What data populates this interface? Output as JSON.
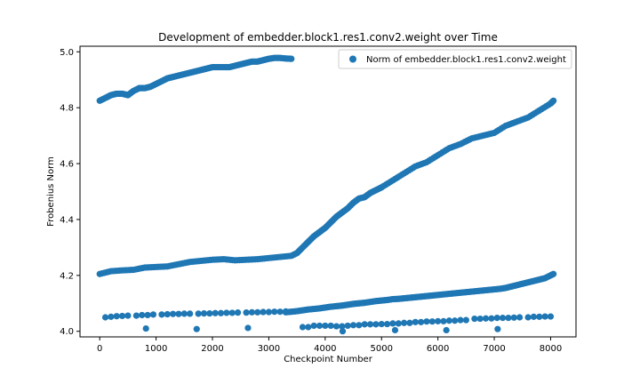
{
  "chart_data": {
    "type": "scatter",
    "title": "Development of embedder.block1.res1.conv2.weight over Time",
    "xlabel": "Checkpoint Number",
    "ylabel": "Frobenius Norm",
    "xlim": [
      -350,
      8450
    ],
    "ylim": [
      3.98,
      5.02
    ],
    "xticks": [
      0,
      1000,
      2000,
      3000,
      4000,
      5000,
      6000,
      7000,
      8000
    ],
    "yticks": [
      4.0,
      4.2,
      4.4,
      4.6,
      4.8,
      5.0
    ],
    "ytick_labels": [
      "4.0",
      "4.2",
      "4.4",
      "4.6",
      "4.8",
      "5.0"
    ],
    "grid": false,
    "legend_position": "top-right",
    "marker_color": "#1f77b4",
    "series": [
      {
        "name": "Norm of embedder.block1.res1.conv2.weight",
        "groups": [
          {
            "x": [
              0,
              100,
              200,
              300,
              400,
              500,
              600,
              700,
              800,
              900,
              1000,
              1100,
              1200,
              1300,
              1400,
              1500,
              1600,
              1700,
              1800,
              1900,
              2000,
              2100,
              2200,
              2300,
              2400,
              2500,
              2600,
              2700,
              2800,
              2900,
              3000,
              3100,
              3200,
              3300,
              3400
            ],
            "y": [
              4.825,
              4.835,
              4.845,
              4.85,
              4.85,
              4.845,
              4.86,
              4.87,
              4.87,
              4.875,
              4.885,
              4.895,
              4.905,
              4.91,
              4.915,
              4.92,
              4.925,
              4.93,
              4.935,
              4.94,
              4.945,
              4.945,
              4.945,
              4.945,
              4.95,
              4.955,
              4.96,
              4.965,
              4.965,
              4.97,
              4.975,
              4.978,
              4.978,
              4.976,
              4.975
            ]
          },
          {
            "x": [
              0,
              200,
              400,
              600,
              800,
              1000,
              1200,
              1400,
              1600,
              1800,
              2000,
              2200,
              2400,
              2600,
              2800,
              3000,
              3200,
              3400,
              3500,
              3600,
              3700,
              3800,
              3900,
              4000,
              4100,
              4200,
              4300,
              4400,
              4500,
              4600,
              4700,
              4800,
              4900,
              5000,
              5200,
              5400,
              5600,
              5800,
              6000,
              6200,
              6400,
              6600,
              6800,
              7000,
              7200,
              7400,
              7600,
              7800,
              8000,
              8050
            ],
            "y": [
              4.205,
              4.215,
              4.218,
              4.22,
              4.228,
              4.23,
              4.232,
              4.24,
              4.248,
              4.252,
              4.256,
              4.258,
              4.254,
              4.256,
              4.258,
              4.262,
              4.266,
              4.27,
              4.28,
              4.3,
              4.32,
              4.34,
              4.355,
              4.37,
              4.39,
              4.41,
              4.425,
              4.44,
              4.46,
              4.475,
              4.48,
              4.495,
              4.505,
              4.515,
              4.54,
              4.565,
              4.59,
              4.605,
              4.63,
              4.655,
              4.67,
              4.69,
              4.7,
              4.71,
              4.735,
              4.75,
              4.765,
              4.79,
              4.815,
              4.825
            ]
          },
          {
            "x": [
              3300,
              3400,
              3500,
              3600,
              3700,
              3800,
              3900,
              4000,
              4100,
              4200,
              4300,
              4400,
              4500,
              4600,
              4700,
              4800,
              4900,
              5000,
              5100,
              5200,
              5300,
              5400,
              5500,
              5600,
              5700,
              5800,
              5900,
              6000,
              6100,
              6200,
              6300,
              6400,
              6500,
              6600,
              6700,
              6800,
              6900,
              7000,
              7100,
              7200,
              7300,
              7400,
              7500,
              7600,
              7700,
              7800,
              7900,
              8000,
              8050
            ],
            "y": [
              4.068,
              4.07,
              4.072,
              4.075,
              4.078,
              4.08,
              4.082,
              4.085,
              4.088,
              4.09,
              4.092,
              4.095,
              4.098,
              4.1,
              4.102,
              4.105,
              4.108,
              4.11,
              4.112,
              4.115,
              4.116,
              4.118,
              4.12,
              4.122,
              4.124,
              4.126,
              4.128,
              4.13,
              4.132,
              4.134,
              4.136,
              4.138,
              4.14,
              4.142,
              4.144,
              4.146,
              4.148,
              4.15,
              4.152,
              4.155,
              4.16,
              4.165,
              4.17,
              4.175,
              4.18,
              4.185,
              4.19,
              4.2,
              4.205
            ]
          },
          {
            "x": [
              100,
              200,
              300,
              400,
              500,
              650,
              750,
              850,
              950,
              1100,
              1200,
              1300,
              1400,
              1500,
              1600,
              1750,
              1850,
              1950,
              2050,
              2150,
              2250,
              2350,
              2450,
              2600,
              2700,
              2800,
              2900,
              3000,
              3100,
              3200,
              3300,
              3600,
              3700,
              3800,
              3900,
              4000,
              4100,
              4200,
              4300,
              4400,
              4500,
              4600,
              4700,
              4800,
              4900,
              5000,
              5100,
              5200,
              5300,
              5400,
              5500,
              5600,
              5700,
              5800,
              5900,
              6000,
              6100,
              6200,
              6300,
              6400,
              6500,
              6650,
              6750,
              6850,
              6950,
              7050,
              7150,
              7250,
              7350,
              7450,
              7600,
              7700,
              7800,
              7900,
              8000
            ],
            "y": [
              4.05,
              4.052,
              4.054,
              4.055,
              4.056,
              4.056,
              4.058,
              4.058,
              4.06,
              4.06,
              4.061,
              4.062,
              4.062,
              4.063,
              4.063,
              4.063,
              4.064,
              4.064,
              4.065,
              4.065,
              4.066,
              4.066,
              4.067,
              4.067,
              4.068,
              4.068,
              4.069,
              4.069,
              4.07,
              4.07,
              4.071,
              4.015,
              4.015,
              4.02,
              4.02,
              4.02,
              4.02,
              4.018,
              4.018,
              4.02,
              4.022,
              4.022,
              4.025,
              4.025,
              4.025,
              4.026,
              4.026,
              4.028,
              4.028,
              4.03,
              4.03,
              4.033,
              4.033,
              4.035,
              4.035,
              4.036,
              4.036,
              4.038,
              4.038,
              4.04,
              4.04,
              4.045,
              4.045,
              4.046,
              4.046,
              4.048,
              4.048,
              4.048,
              4.049,
              4.05,
              4.05,
              4.052,
              4.052,
              4.053,
              4.053
            ]
          },
          {
            "x": [
              820,
              1720,
              2630,
              4310,
              5240,
              6150,
              7060
            ],
            "y": [
              4.01,
              4.008,
              4.012,
              4.0,
              4.004,
              4.004,
              4.008
            ]
          }
        ]
      }
    ]
  }
}
